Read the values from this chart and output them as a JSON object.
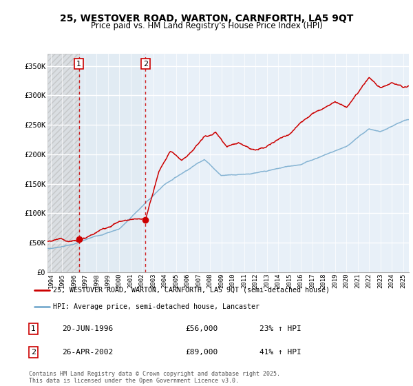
{
  "title": "25, WESTOVER ROAD, WARTON, CARNFORTH, LA5 9QT",
  "subtitle": "Price paid vs. HM Land Registry's House Price Index (HPI)",
  "ylabel_ticks": [
    "£0",
    "£50K",
    "£100K",
    "£150K",
    "£200K",
    "£250K",
    "£300K",
    "£350K"
  ],
  "ytick_vals": [
    0,
    50000,
    100000,
    150000,
    200000,
    250000,
    300000,
    350000
  ],
  "ylim": [
    0,
    370000
  ],
  "xlim_start": 1993.7,
  "xlim_end": 2025.5,
  "legend_line1": "25, WESTOVER ROAD, WARTON, CARNFORTH, LA5 9QT (semi-detached house)",
  "legend_line2": "HPI: Average price, semi-detached house, Lancaster",
  "transaction1_label": "1",
  "transaction1_date": "20-JUN-1996",
  "transaction1_price": "£56,000",
  "transaction1_hpi": "23% ↑ HPI",
  "transaction1_year": 1996.47,
  "transaction1_value": 56000,
  "transaction2_label": "2",
  "transaction2_date": "26-APR-2002",
  "transaction2_price": "£89,000",
  "transaction2_hpi": "41% ↑ HPI",
  "transaction2_year": 2002.32,
  "transaction2_value": 89000,
  "color_property": "#cc0000",
  "color_hpi": "#7aadcf",
  "color_hatch_fill": "#dce8f0",
  "color_hatch_pre": "#e0e0e0",
  "footnote": "Contains HM Land Registry data © Crown copyright and database right 2025.\nThis data is licensed under the Open Government Licence v3.0.",
  "background_color": "#e8f0f8"
}
